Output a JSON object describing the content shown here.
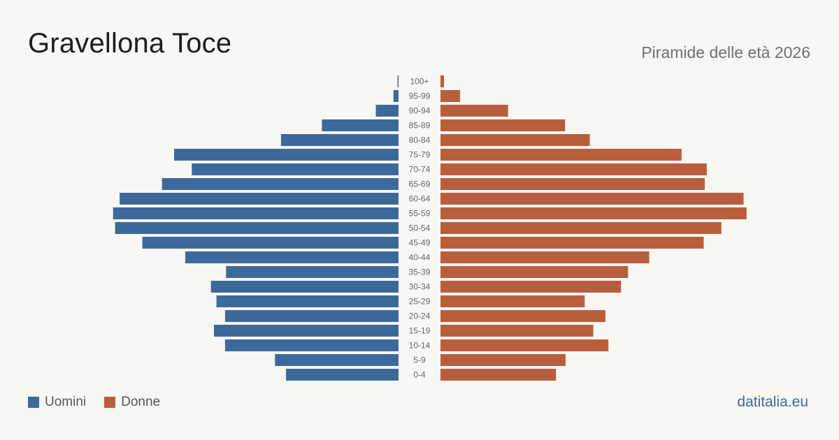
{
  "header": {
    "title": "Gravellona Toce",
    "subtitle": "Piramide delle età 2026"
  },
  "legend": {
    "men_label": "Uomini",
    "women_label": "Donne"
  },
  "footer": {
    "brand": "datitalia.eu"
  },
  "colors": {
    "men": "#3b6a9a",
    "women": "#b95e3d",
    "axis_label": "#666666"
  },
  "chart_data": {
    "type": "bar",
    "orientation": "horizontal-pyramid",
    "categories": [
      "100+",
      "95-99",
      "90-94",
      "85-89",
      "80-84",
      "75-79",
      "70-74",
      "65-69",
      "60-64",
      "55-59",
      "50-54",
      "45-49",
      "40-44",
      "35-39",
      "30-34",
      "25-29",
      "20-24",
      "15-19",
      "10-14",
      "5-9",
      "0-4"
    ],
    "series": [
      {
        "name": "Uomini",
        "values": [
          0.2,
          1,
          4.5,
          15.2,
          23.3,
          44.5,
          41,
          46.9,
          55.3,
          56.6,
          56.2,
          50.8,
          42.3,
          34.2,
          37.2,
          36.1,
          34.4,
          36.6,
          34.4,
          24.5,
          22.3
        ]
      },
      {
        "name": "Donne",
        "values": [
          0.7,
          3.9,
          13.4,
          24.7,
          29.6,
          47.8,
          52.8,
          52.4,
          60.1,
          60.7,
          55.7,
          52.2,
          41.4,
          37.2,
          35.8,
          28.6,
          32.7,
          30.3,
          33.3,
          24.8,
          22.9
        ]
      }
    ],
    "xlim": [
      0,
      61
    ],
    "gridlines": false,
    "axis_value_labels_shown": false,
    "legend_position": "bottom-left"
  }
}
